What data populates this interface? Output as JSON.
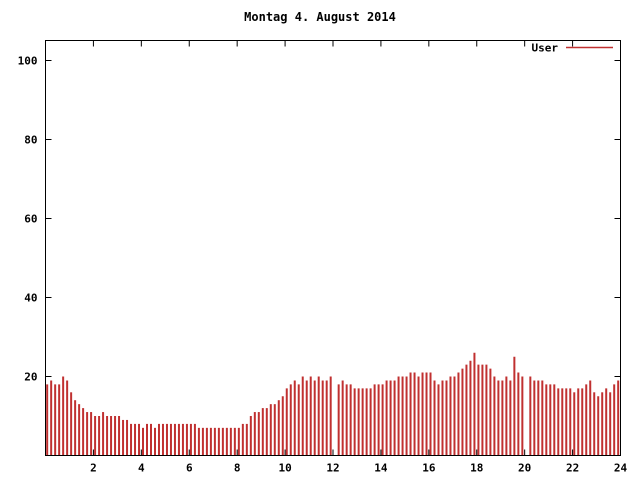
{
  "legend": {
    "label": "User"
  },
  "colors": {
    "background": "#ffffff",
    "axis": "#000000",
    "series": "#c03030"
  },
  "chart_data": {
    "type": "bar",
    "title": "Montag 4. August 2014",
    "xlabel": "",
    "ylabel": "",
    "xlim": [
      0,
      24
    ],
    "ylim": [
      0,
      105
    ],
    "xticks": [
      2,
      4,
      6,
      8,
      10,
      12,
      14,
      16,
      18,
      20,
      22,
      24
    ],
    "yticks": [
      20,
      40,
      60,
      80,
      100
    ],
    "grid": false,
    "legend_position": "top-right",
    "x_start": 0.07,
    "x_step": 0.166667,
    "series": [
      {
        "name": "User",
        "color": "#c03030",
        "values": [
          18,
          19,
          18,
          18,
          20,
          19,
          16,
          14,
          13,
          12,
          11,
          11,
          10,
          10,
          11,
          10,
          10,
          10,
          10,
          9,
          9,
          8,
          8,
          8,
          7,
          8,
          8,
          7,
          8,
          8,
          8,
          8,
          8,
          8,
          8,
          8,
          8,
          8,
          7,
          7,
          7,
          7,
          7,
          7,
          7,
          7,
          7,
          7,
          7,
          8,
          8,
          10,
          11,
          11,
          12,
          12,
          13,
          13,
          14,
          15,
          17,
          18,
          19,
          18,
          20,
          19,
          20,
          19,
          20,
          19,
          19,
          20,
          null,
          18,
          19,
          18,
          18,
          17,
          17,
          17,
          17,
          17,
          18,
          18,
          18,
          19,
          19,
          19,
          20,
          20,
          20,
          21,
          21,
          20,
          21,
          21,
          21,
          19,
          18,
          19,
          19,
          20,
          20,
          21,
          22,
          23,
          24,
          26,
          23,
          23,
          23,
          22,
          20,
          19,
          19,
          20,
          19,
          25,
          21,
          20,
          null,
          20,
          19,
          19,
          19,
          18,
          18,
          18,
          17,
          17,
          17,
          17,
          16,
          17,
          17,
          18,
          19,
          16,
          15,
          16,
          17,
          16,
          18,
          19
        ]
      }
    ]
  }
}
